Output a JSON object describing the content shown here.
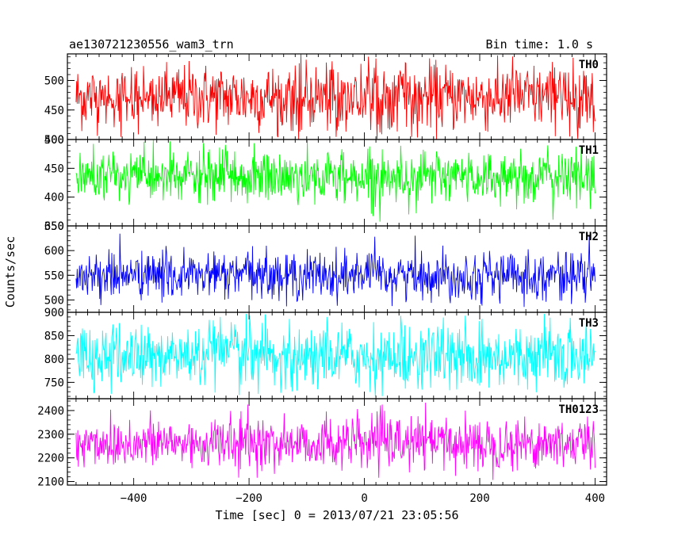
{
  "header": {
    "title": "ae130721230556_wam3_trn",
    "bin_time": "Bin time: 1.0 s"
  },
  "chart_data": {
    "type": "line",
    "xlabel": "Time [sec] 0 = 2013/07/21 23:05:56",
    "ylabel": "Counts/sec",
    "xlim": [
      -515,
      420
    ],
    "x_ticks": [
      -400,
      -200,
      0,
      200,
      400
    ],
    "x_tick_labels": [
      "−400",
      "−200",
      "0",
      "200",
      "400"
    ],
    "x_range_data": [
      -500,
      400
    ],
    "panels": [
      {
        "name": "TH0",
        "color": "#ff0000",
        "ylim": [
          400,
          545
        ],
        "yticks": [
          400,
          450,
          500
        ],
        "mean": 472,
        "std": 28,
        "lo": 400,
        "hi": 545
      },
      {
        "name": "TH1",
        "color": "#00ff00",
        "ylim": [
          350,
          500
        ],
        "yticks": [
          350,
          400,
          450,
          500
        ],
        "mean": 435,
        "std": 23,
        "lo": 352,
        "hi": 500
      },
      {
        "name": "TH2",
        "color": "#0000ff",
        "ylim": [
          475,
          650
        ],
        "yticks": [
          500,
          550,
          600,
          650
        ],
        "mean": 550,
        "std": 24,
        "lo": 482,
        "hi": 650
      },
      {
        "name": "TH3",
        "color": "#00ffff",
        "ylim": [
          715,
          900
        ],
        "yticks": [
          750,
          800,
          850,
          900
        ],
        "mean": 805,
        "std": 35,
        "lo": 720,
        "hi": 900
      },
      {
        "name": "TH0123",
        "color": "#ff00ff",
        "ylim": [
          2085,
          2450
        ],
        "yticks": [
          2100,
          2200,
          2300,
          2400
        ],
        "mean": 2262,
        "std": 55,
        "lo": 2090,
        "hi": 2445
      }
    ]
  }
}
